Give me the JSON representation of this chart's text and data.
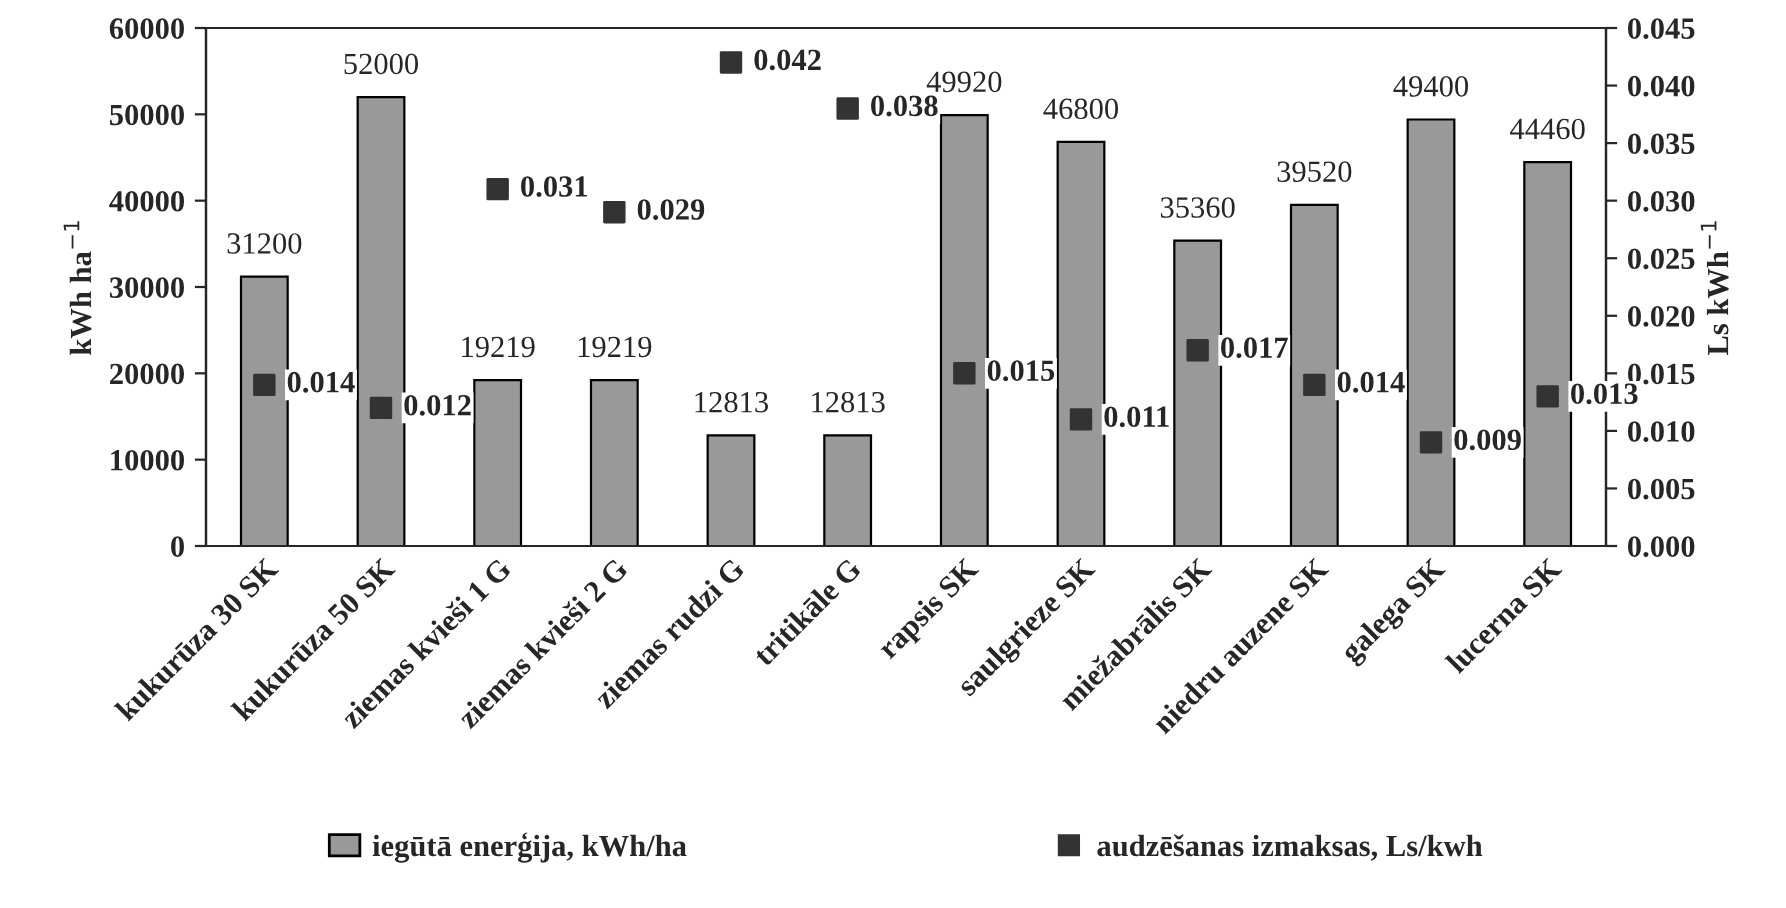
{
  "chart_data": {
    "type": "bar",
    "categories": [
      "kukurūza 30 SK",
      "kukurūza 50 SK",
      "ziemas kvieši 1 G",
      "ziemas kvieši 2 G",
      "ziemas rudzi G",
      "tritikāle G",
      "rapsis SK",
      "saulgrieze SK",
      "miežabrālis SK",
      "niedru auzene SK",
      "galega SK",
      "lucerna SK"
    ],
    "series": [
      {
        "name": "iegūtā enerģija, kWh/ha",
        "color": "#999999",
        "values": [
          31200,
          52000,
          19219,
          19219,
          12813,
          12813,
          49920,
          46800,
          35360,
          39520,
          49400,
          44460
        ]
      },
      {
        "name": "audzēšanas izmaksas, Ls/kwh",
        "type": "scatter",
        "axis": "y2",
        "color": "#333333",
        "marker": "square",
        "values": [
          0.014,
          0.012,
          0.031,
          0.029,
          0.042,
          0.038,
          0.015,
          0.011,
          0.017,
          0.014,
          0.009,
          0.013
        ]
      }
    ],
    "ylabel": "kWh ha$^{−1}$",
    "y2label": "Ls kWh$^{−1}$",
    "ylim": [
      0,
      60000
    ],
    "yticks": [
      0,
      10000,
      20000,
      30000,
      40000,
      50000,
      60000
    ],
    "y2lim": [
      0,
      0.045
    ],
    "y2ticks": [
      {
        "value": 0,
        "label": "0.000"
      },
      {
        "value": 0.005,
        "label": "0.005"
      },
      {
        "value": 0.01,
        "label": "0.010"
      },
      {
        "value": 0.015,
        "label": "0.015"
      },
      {
        "value": 0.02,
        "label": "0.020"
      },
      {
        "value": 0.025,
        "label": "0.025"
      },
      {
        "value": 0.03,
        "label": "0.030"
      },
      {
        "value": 0.035,
        "label": "0.035"
      },
      {
        "value": 0.04,
        "label": "0.040"
      },
      {
        "value": 0.045,
        "label": "0.045"
      }
    ],
    "data_labels": true,
    "grid": false,
    "legend": "bottom"
  }
}
